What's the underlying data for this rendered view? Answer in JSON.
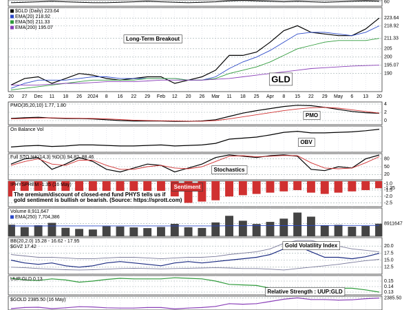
{
  "chart_data": [
    {
      "type": "line",
      "color": "#000000",
      "ylim": [
        50,
        64
      ],
      "yticks": [
        60
      ],
      "values": [
        58,
        59,
        60,
        61,
        60,
        59,
        58,
        58,
        59,
        60,
        61,
        60,
        59,
        58,
        59,
        60,
        62,
        63,
        62,
        61,
        60,
        61,
        60,
        59,
        60,
        61,
        62,
        61
      ]
    },
    {
      "type": "line",
      "ylim": [
        179,
        230
      ],
      "categories": [
        "20",
        "27",
        "Dec",
        "11",
        "18",
        "26",
        "2024",
        "8",
        "16",
        "22",
        "29",
        "Feb",
        "12",
        "20",
        "26",
        "Mar",
        "11",
        "18",
        "25",
        "Apr",
        "8",
        "15",
        "22",
        "29",
        "May",
        "6",
        "13",
        "20"
      ],
      "yticks": [
        190,
        195.07,
        200,
        205,
        211.33,
        218.92,
        223.64
      ],
      "annotations": [
        "Long-Term Breakout",
        "GLD"
      ],
      "series": [
        {
          "name": "$GLD (Daily) 223.64",
          "color": "#000000",
          "values": [
            183,
            187,
            188,
            184,
            187,
            190,
            189,
            187,
            186,
            187,
            188,
            188,
            184,
            186,
            188,
            192,
            201,
            201,
            203,
            209,
            216,
            219,
            215,
            214,
            213,
            213,
            217,
            223.64
          ]
        },
        {
          "name": "EMA(20) 218.92",
          "color": "#2a48c8",
          "values": [
            181,
            184,
            186,
            186,
            186,
            187,
            188,
            188,
            187,
            187,
            187,
            187,
            187,
            186,
            186,
            188,
            193,
            197,
            200,
            204,
            209,
            214,
            215,
            215,
            214,
            213,
            215,
            218.92
          ]
        },
        {
          "name": "EMA(50) 211.33",
          "color": "#2e9a3a",
          "values": [
            180,
            181,
            182,
            183,
            184,
            185,
            186,
            186,
            186,
            186,
            187,
            187,
            187,
            186,
            186,
            187,
            190,
            192,
            194,
            197,
            201,
            205,
            207,
            209,
            210,
            210,
            210,
            211.33
          ]
        },
        {
          "name": "EMA(200) 195.07",
          "color": "#8a3fb8",
          "values": [
            183,
            183,
            183,
            183.5,
            184,
            184,
            184.5,
            185,
            185,
            185,
            185.5,
            186,
            186,
            186,
            186,
            186.5,
            187,
            188,
            189,
            190,
            191,
            192,
            193,
            193.5,
            194,
            194.5,
            194.8,
            195.07
          ]
        }
      ]
    },
    {
      "type": "line",
      "legend": [
        "PMO(35,20,10) 1.77, 1.80"
      ],
      "ylim": [
        -1,
        4.5
      ],
      "yticks": [
        0,
        2,
        4
      ],
      "annotations": [
        "PMO"
      ],
      "series": [
        {
          "color": "#000000",
          "values": [
            0.5,
            0.7,
            0.8,
            0.6,
            0.5,
            0.5,
            0.4,
            0.2,
            0,
            -0.1,
            -0.1,
            -0.1,
            -0.2,
            -0.2,
            -0.1,
            0.2,
            1,
            1.8,
            2.4,
            2.9,
            3.4,
            3.7,
            3.6,
            3.2,
            2.7,
            2.2,
            1.9,
            1.77
          ]
        },
        {
          "color": "#d03030",
          "values": [
            0.4,
            0.5,
            0.6,
            0.65,
            0.6,
            0.55,
            0.5,
            0.4,
            0.25,
            0.1,
            0,
            -0.05,
            -0.1,
            -0.15,
            -0.15,
            0,
            0.4,
            0.9,
            1.4,
            1.9,
            2.4,
            2.8,
            3.1,
            3.2,
            3,
            2.6,
            2.2,
            1.8
          ]
        }
      ]
    },
    {
      "type": "line",
      "legend": [
        "On Balance Vol"
      ],
      "ylim": [
        30,
        80
      ],
      "annotations": [
        "OBV"
      ],
      "series": [
        {
          "color": "#000000",
          "values": [
            40,
            42,
            43,
            41,
            42,
            44,
            44,
            43,
            42,
            42,
            43,
            44,
            42,
            43,
            44,
            47,
            55,
            57,
            59,
            63,
            68,
            70,
            67,
            67,
            68,
            69,
            71,
            74
          ]
        }
      ]
    },
    {
      "type": "line",
      "legend": [
        "Full STO %K(14,3) %D(3) 94.82, 88.46"
      ],
      "ylim": [
        0,
        100
      ],
      "yticks": [
        20,
        50,
        80
      ],
      "annotations": [
        "Stochastics"
      ],
      "series": [
        {
          "color": "#000000",
          "values": [
            60,
            80,
            85,
            40,
            60,
            85,
            70,
            40,
            30,
            45,
            60,
            55,
            30,
            45,
            60,
            85,
            95,
            90,
            85,
            92,
            95,
            90,
            40,
            35,
            50,
            45,
            80,
            94.82
          ]
        },
        {
          "color": "#d03030",
          "values": [
            55,
            70,
            80,
            60,
            55,
            75,
            75,
            55,
            40,
            40,
            50,
            55,
            45,
            42,
            50,
            70,
            90,
            92,
            88,
            90,
            93,
            92,
            65,
            45,
            42,
            45,
            65,
            88.46
          ]
        }
      ]
    },
    {
      "type": "bar",
      "legend": [
        "!PHYSPREM -1.35 (16 May)"
      ],
      "color": "#d03030",
      "ylim": [
        -2.8,
        -0.8
      ],
      "yticks": [
        {
          "value": -1,
          "label": "-1.0"
        },
        -1.35,
        -1.5,
        {
          "value": -2,
          "label": "-2.0"
        },
        -2.5
      ],
      "annotations": [
        "Sentiment",
        "The premium/discount of closed-end fund PHYS tells us if",
        "gold sentiment is bullish or bearish. (Source: https://sprott.com)"
      ],
      "values": [
        -2.0,
        -2.1,
        -2.2,
        -2.3,
        -2.2,
        -2.1,
        -2.0,
        -2.1,
        -2.3,
        -2.4,
        -2.3,
        -2.2,
        -2.4,
        -2.5,
        -2.4,
        -2.3,
        -2.0,
        -1.9,
        -1.8,
        -1.7,
        -1.6,
        -1.5,
        -1.7,
        -1.8,
        -1.7,
        -1.6,
        -1.5,
        -1.35
      ]
    },
    {
      "type": "bar",
      "legend": [
        "Volume 8,911,647"
      ],
      "color": "#444444",
      "ylim": [
        0,
        20000000
      ],
      "yticks": [
        8911647
      ],
      "values": [
        8200000,
        6500000,
        7800000,
        9500000,
        6000000,
        5200000,
        4800000,
        7100000,
        6900000,
        6300000,
        5800000,
        6600000,
        8800000,
        6400000,
        5900000,
        9800000,
        14500000,
        11000000,
        8700000,
        10200000,
        12500000,
        16800000,
        13900000,
        7600000,
        8100000,
        6800000,
        7300000,
        8911647
      ],
      "series": [
        {
          "name": "EMA(250) 7,704,386",
          "color": "#2a48c8",
          "values": [
            7300000,
            7320000,
            7340000,
            7370000,
            7380000,
            7380000,
            7370000,
            7380000,
            7380000,
            7370000,
            7360000,
            7360000,
            7380000,
            7380000,
            7370000,
            7390000,
            7450000,
            7480000,
            7490000,
            7520000,
            7560000,
            7620000,
            7660000,
            7660000,
            7670000,
            7670000,
            7680000,
            7704386
          ]
        }
      ]
    },
    {
      "type": "line",
      "legend": [
        "BB(20,2.0) 15.28 - 16.62 - 17.95",
        "$GVZ 17.42"
      ],
      "ylim": [
        10,
        23
      ],
      "yticks": [
        12.5,
        {
          "value": 15,
          "label": "15.0"
        },
        17.5,
        {
          "value": 20,
          "label": "20.0"
        }
      ],
      "annotations": [
        "Gold Volatility Index"
      ],
      "series": [
        {
          "color": "#1a2a80",
          "values": [
            15,
            14,
            13.5,
            14,
            13,
            12.5,
            13,
            14,
            14.5,
            14,
            13.5,
            13,
            14,
            14.5,
            14,
            14.5,
            15,
            15.5,
            16,
            17,
            19,
            20,
            18,
            16,
            16,
            15.5,
            16.2,
            17.42
          ]
        },
        {
          "color": "#7a7a9a",
          "values": [
            17,
            16.5,
            16,
            16,
            15.8,
            15.5,
            15.5,
            15.8,
            16,
            16,
            15.8,
            15.5,
            15.8,
            16,
            16,
            16.3,
            17,
            17.5,
            18,
            19,
            21,
            22,
            22,
            21,
            20,
            19,
            18.5,
            17.95
          ]
        },
        {
          "color": "#7a7a9a",
          "values": [
            12.5,
            12.3,
            12,
            11.8,
            11.6,
            11.5,
            11.6,
            11.8,
            12,
            12.1,
            12,
            11.9,
            12,
            12.1,
            12.2,
            12.3,
            12.2,
            12,
            12,
            11.8,
            11.5,
            12,
            12.5,
            13,
            13.5,
            14.2,
            14.8,
            15.28
          ]
        }
      ]
    },
    {
      "type": "line",
      "legend": [
        "UUP:GLD 0.13"
      ],
      "ylim": [
        0.125,
        0.16
      ],
      "yticks": [
        0.13,
        0.14,
        0.15
      ],
      "annotations": [
        "Relative Strength : UUP:GLD"
      ],
      "series": [
        {
          "color": "#2e9a3a",
          "values": [
            0.155,
            0.152,
            0.151,
            0.154,
            0.152,
            0.148,
            0.15,
            0.153,
            0.155,
            0.154,
            0.154,
            0.154,
            0.156,
            0.155,
            0.154,
            0.15,
            0.144,
            0.143,
            0.142,
            0.137,
            0.134,
            0.132,
            0.135,
            0.136,
            0.137,
            0.137,
            0.134,
            0.13
          ]
        }
      ]
    },
    {
      "type": "line",
      "legend": [
        "$GOLD 2385.50 (16 May)"
      ],
      "ylim": [
        1950,
        2450
      ],
      "yticks": [
        {
          "value": 2385.5,
          "label": "2385.50"
        }
      ],
      "series": [
        {
          "color": "#8a3fb8",
          "values": [
            2000,
            2040,
            2050,
            2000,
            2030,
            2070,
            2060,
            2030,
            2020,
            2020,
            2040,
            2040,
            1990,
            2020,
            2040,
            2080,
            2180,
            2160,
            2180,
            2260,
            2340,
            2390,
            2330,
            2330,
            2310,
            2320,
            2360,
            2385.5
          ]
        }
      ]
    }
  ]
}
